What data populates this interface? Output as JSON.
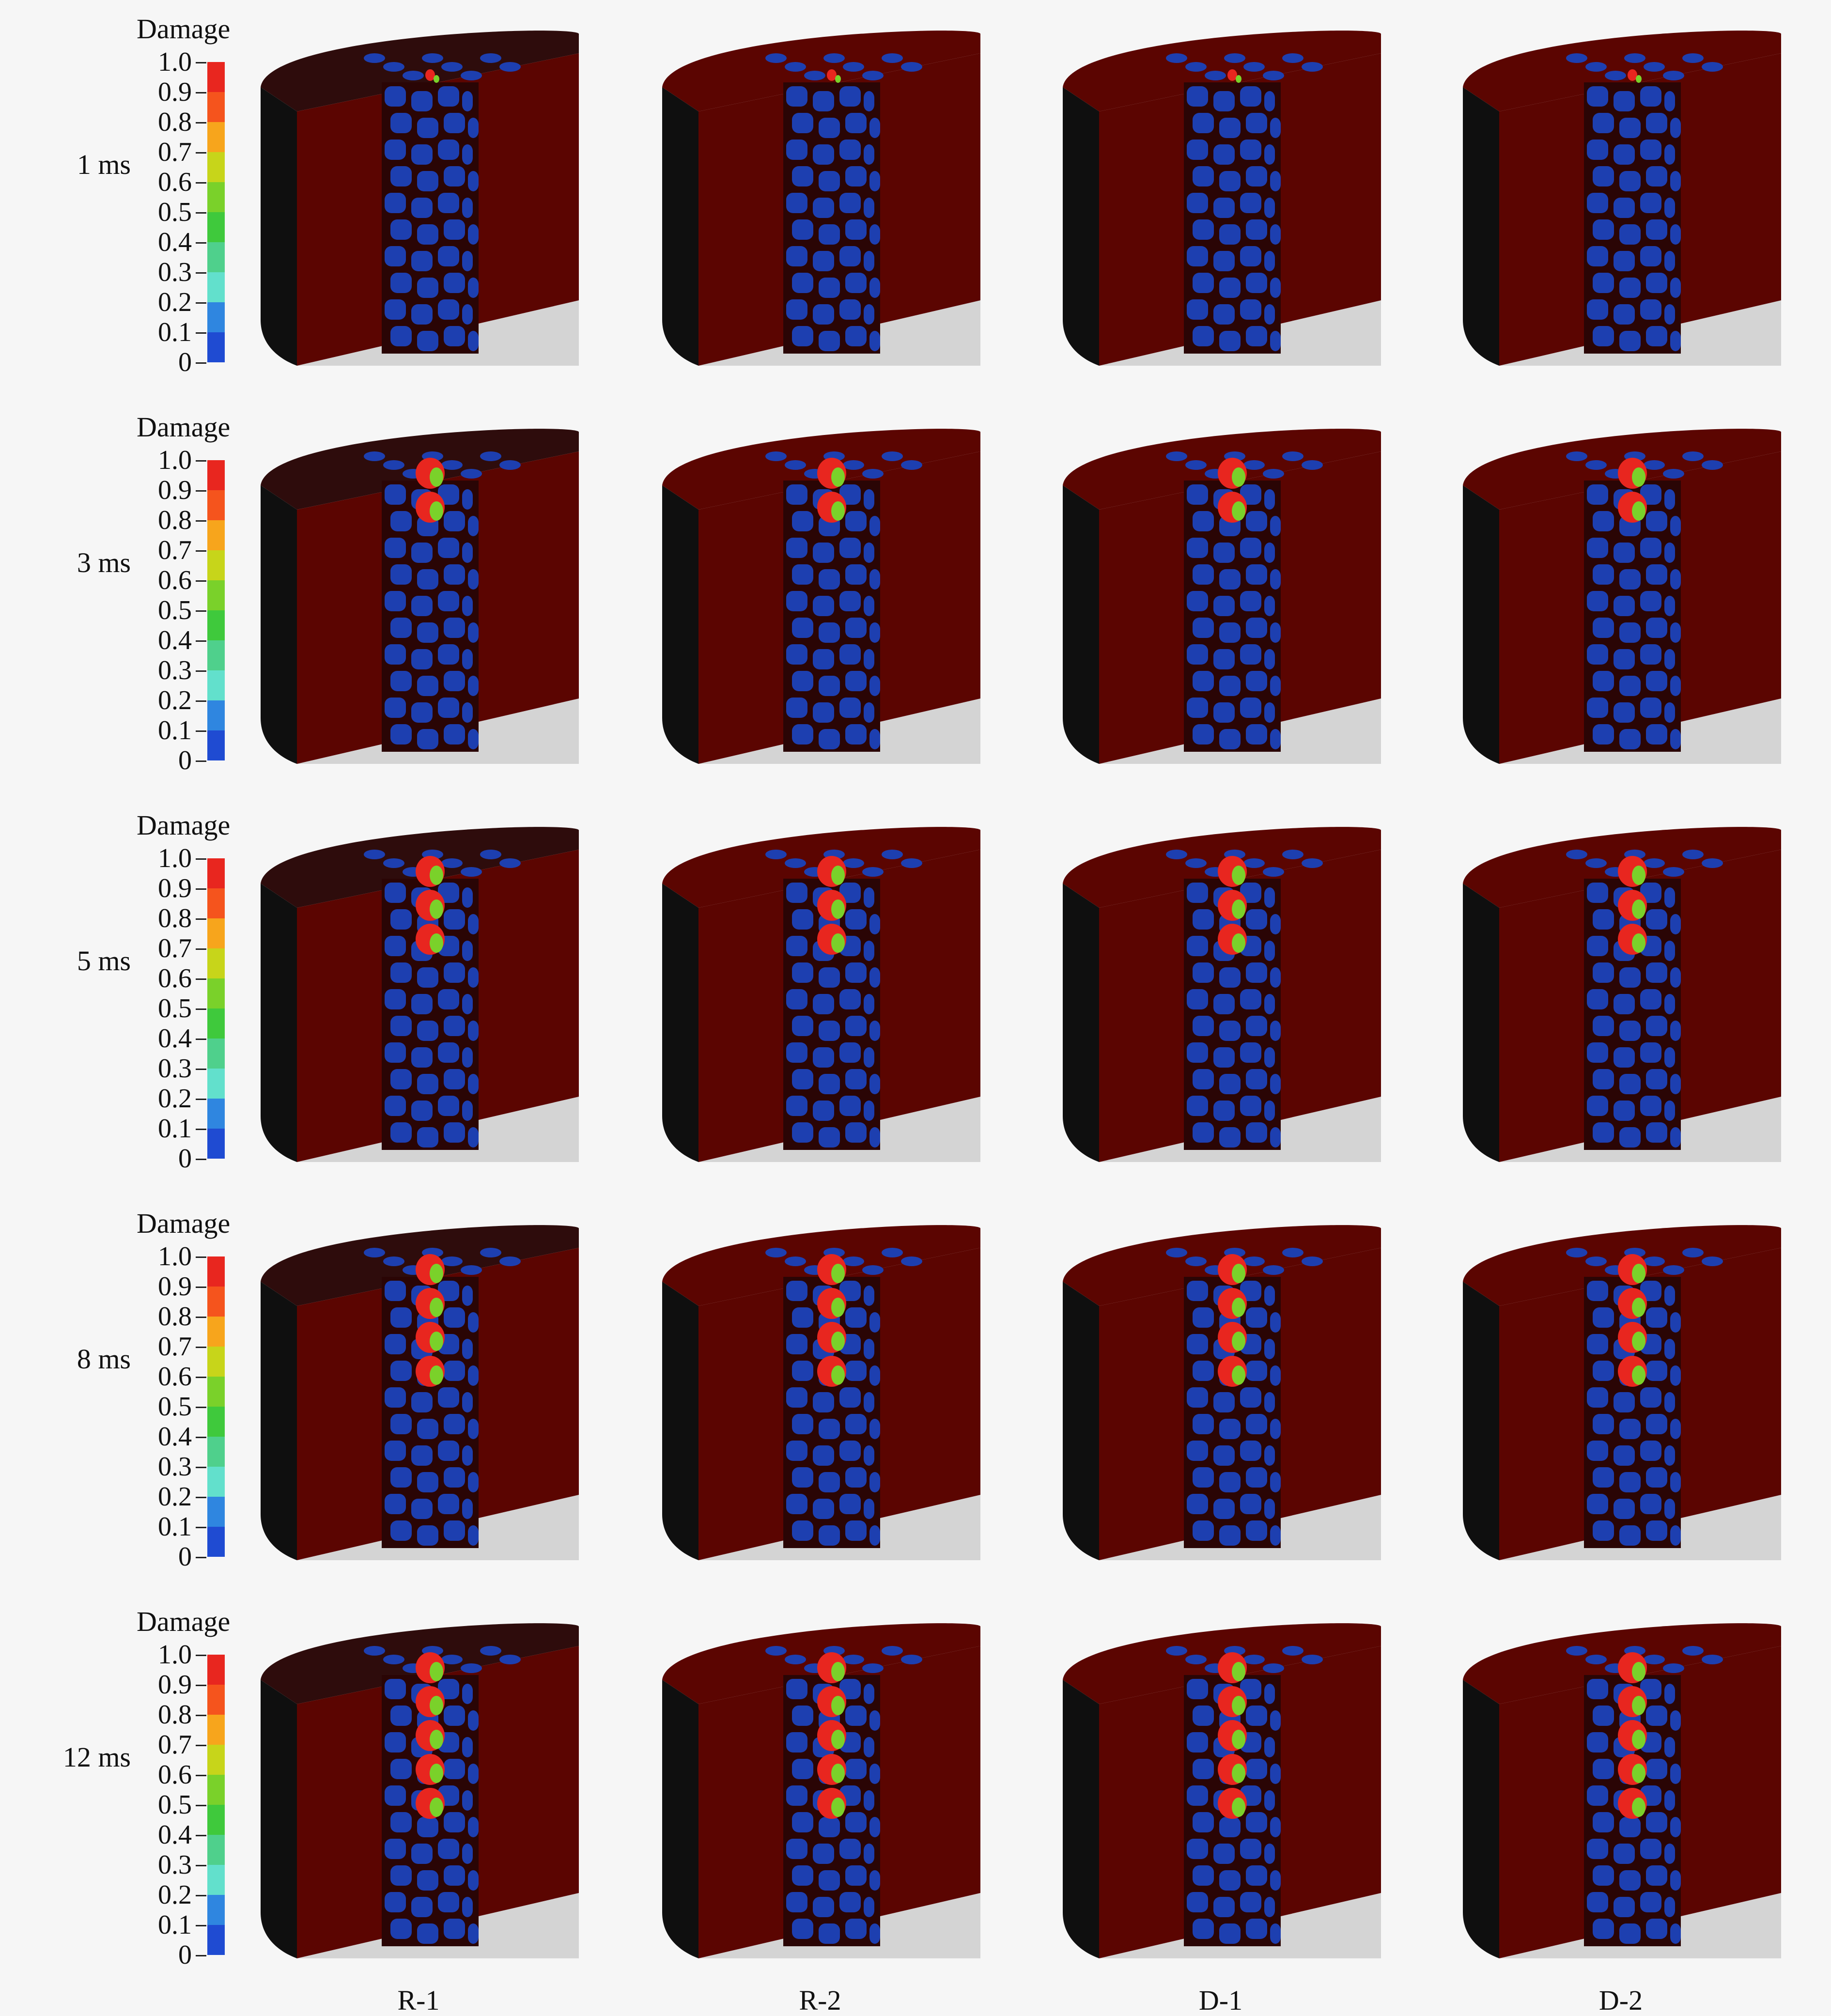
{
  "legend": {
    "title": "Damage",
    "ticks": [
      "1.0",
      "0.9",
      "0.8",
      "0.7",
      "0.6",
      "0.5",
      "0.4",
      "0.3",
      "0.2",
      "0.1",
      "0"
    ],
    "colors": [
      "#e8261f",
      "#f5541d",
      "#f7a51c",
      "#c7d51a",
      "#7ad12a",
      "#3fc93c",
      "#4fd08c",
      "#62e0cc",
      "#2f86e0",
      "#1f4bd2"
    ]
  },
  "times": [
    "1 ms",
    "3 ms",
    "5 ms",
    "8 ms",
    "12 ms"
  ],
  "columns": [
    "R-1",
    "R-2",
    "D-1",
    "D-2"
  ],
  "colors": {
    "solid": "#5b0501",
    "top_dark": "#2e0c0c",
    "side_dark": "#0f0f0f",
    "particle": "#1d3fb0",
    "ground": "#d4d4d4",
    "damage_red": "#e8261f",
    "damage_green": "#7ad12a"
  }
}
